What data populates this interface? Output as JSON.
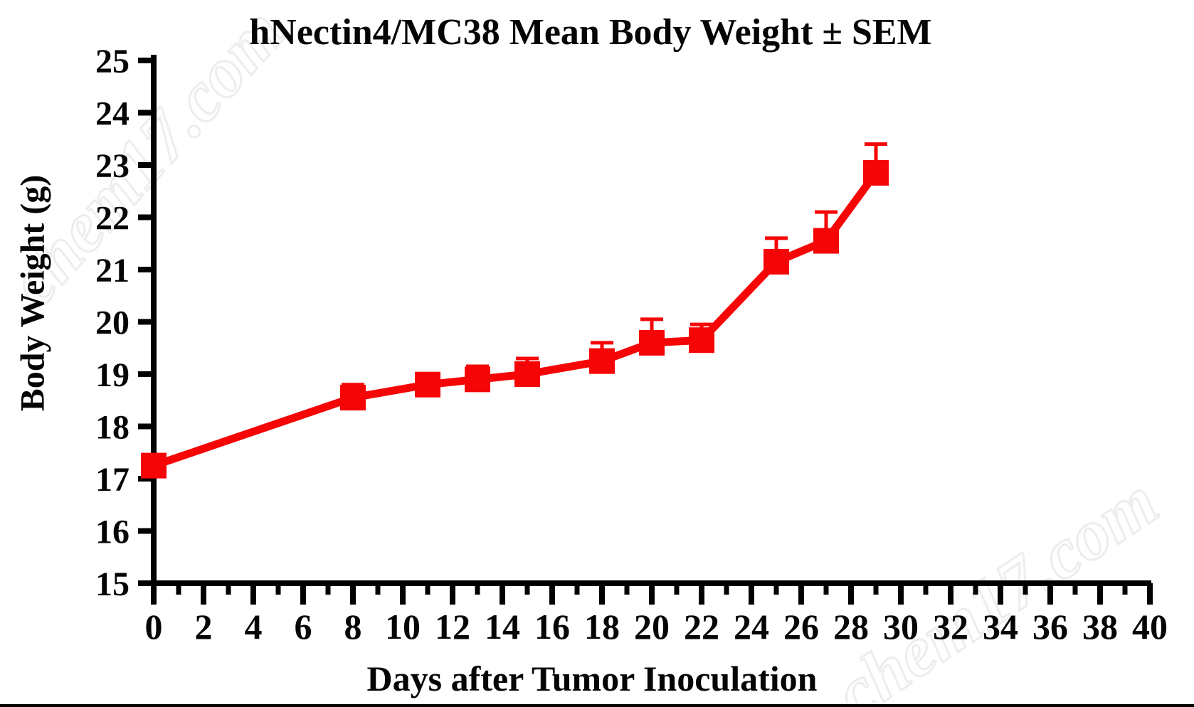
{
  "title": "hNectin4/MC38 Mean Body Weight ± SEM",
  "watermark": {
    "text": "chem17.com"
  },
  "chart_data": {
    "type": "line",
    "title": "hNectin4/MC38 Mean Body Weight ± SEM",
    "xlabel": "Days after Tumor Inoculation",
    "ylabel": "Body Weight (g)",
    "xlim": [
      0,
      40
    ],
    "ylim": [
      15,
      25
    ],
    "x_major_step": 2,
    "x_minor_step": 1,
    "y_major_step": 1,
    "grid": false,
    "legend_position": "none",
    "error_bars": "upper-sem",
    "series": [
      {
        "name": "hNectin4/MC38 mean body weight",
        "color": "#f50505",
        "marker": "square",
        "x": [
          0,
          8,
          11,
          13,
          15,
          18,
          20,
          22,
          25,
          27,
          29
        ],
        "y": [
          17.25,
          18.55,
          18.8,
          18.9,
          19.0,
          19.25,
          19.6,
          19.65,
          21.15,
          21.55,
          22.85
        ],
        "sem": [
          0.1,
          0.25,
          0.2,
          0.25,
          0.3,
          0.35,
          0.45,
          0.3,
          0.45,
          0.55,
          0.55
        ]
      }
    ]
  }
}
